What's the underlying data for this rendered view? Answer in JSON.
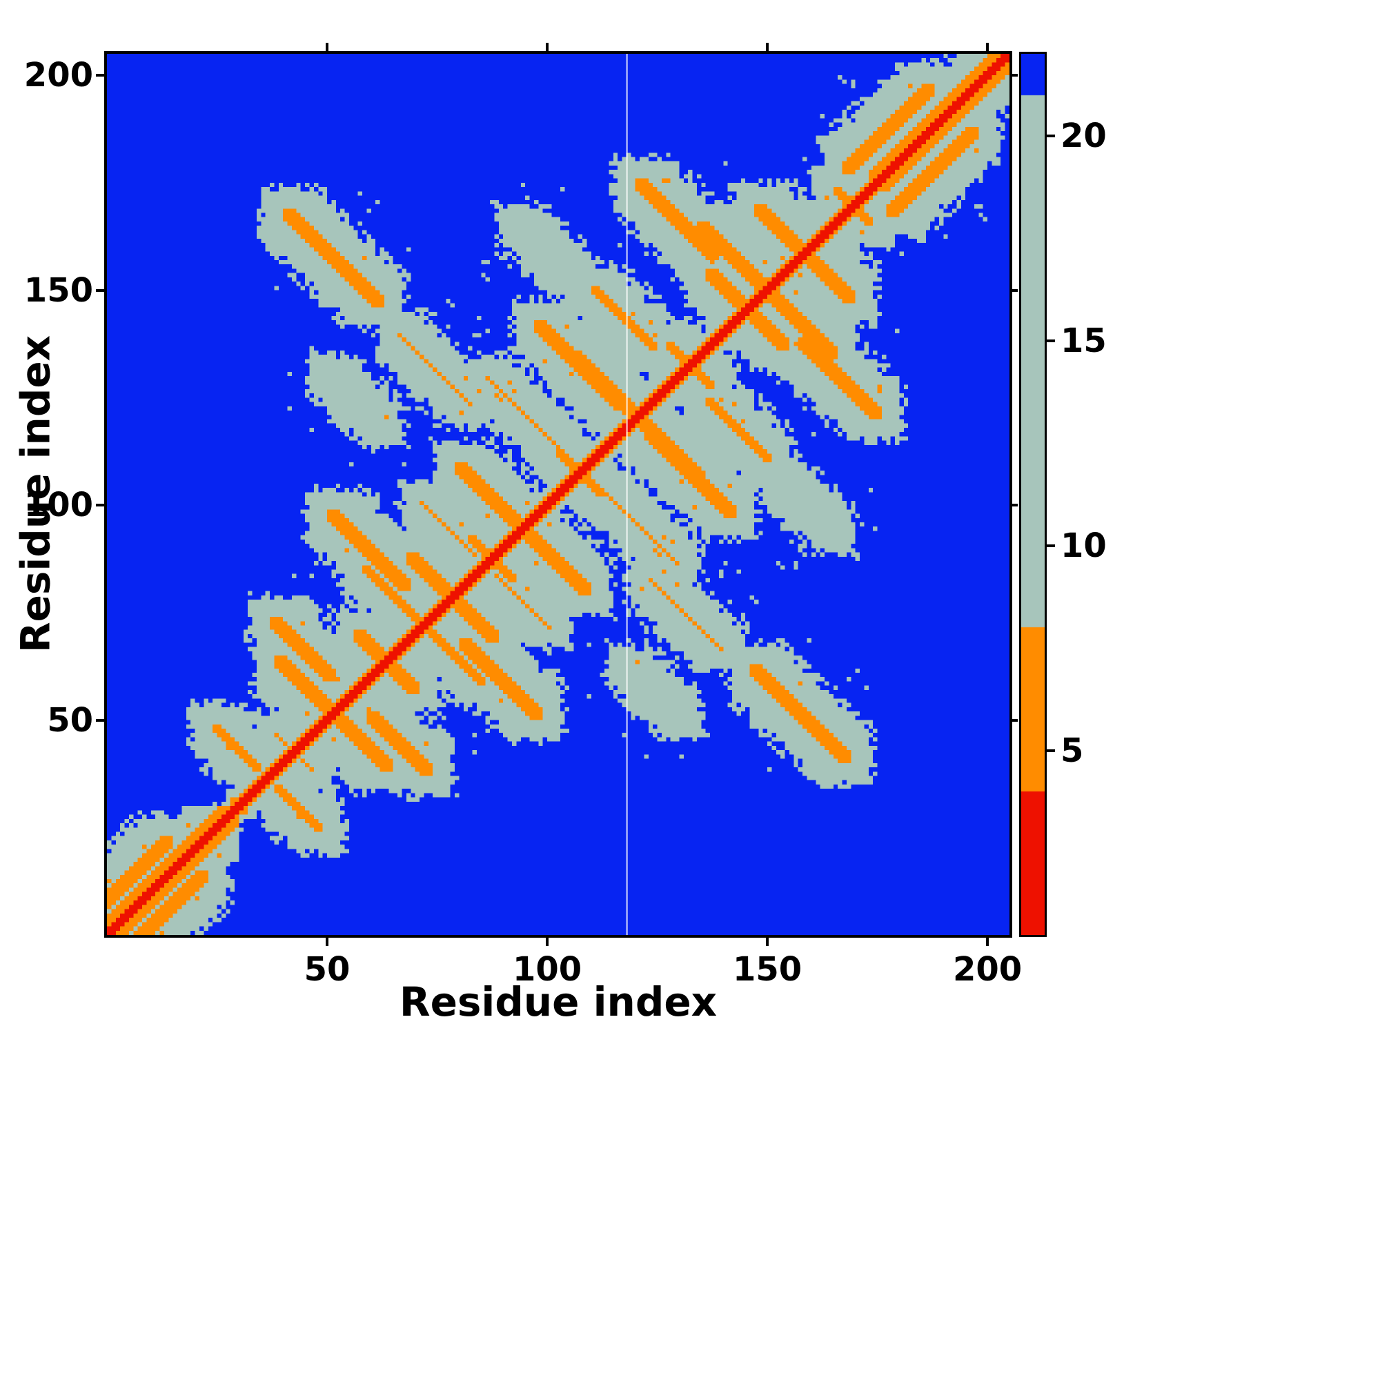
{
  "chart_data": {
    "type": "heatmap",
    "title": "",
    "xlabel": "Residue index",
    "ylabel": "Residue index",
    "x_range": [
      0,
      205
    ],
    "y_range": [
      0,
      205
    ],
    "x_ticks": [
      50,
      100,
      150,
      200
    ],
    "y_ticks": [
      50,
      100,
      150,
      200
    ],
    "legend": "colorbar-right",
    "colorbar": {
      "ticks": [
        5,
        10,
        15,
        20
      ],
      "vmin": 0.5,
      "vmax": 22,
      "colors": {
        "red": "#ee1100",
        "orange": "#ff8c00",
        "pale": "#a7c5bb",
        "blue": "#0724f2"
      },
      "thresholds": {
        "red_max": 4,
        "orange_max": 8,
        "pale_max": 21
      }
    },
    "matrix": {
      "n": 205,
      "base_value": 40,
      "chain_step": 3.9,
      "helix_slope": 1.6,
      "helix_offset": 1.5,
      "contact_slope": 2.6,
      "noise_seed": 11,
      "artifact_column": 118,
      "helices": [
        [
          1,
          30
        ],
        [
          174,
          205
        ]
      ],
      "contacts": [
        {
          "i": 52,
          "j": 52,
          "len": 12,
          "dir": -1,
          "dmin": 4.2
        },
        {
          "i": 64,
          "j": 64,
          "len": 6,
          "dir": -1,
          "dmin": 5.0
        },
        {
          "i": 79,
          "j": 79,
          "len": 9,
          "dir": -1,
          "dmin": 4.2
        },
        {
          "i": 95,
          "j": 95,
          "len": 6,
          "dir": -1,
          "dmin": 6.0
        },
        {
          "i": 108,
          "j": 108,
          "len": 5,
          "dir": -1,
          "dmin": 6.0
        },
        {
          "i": 121,
          "j": 121,
          "len": 14,
          "dir": -1,
          "dmin": 4.2
        },
        {
          "i": 133,
          "j": 133,
          "len": 5,
          "dir": -1,
          "dmin": 5.5
        },
        {
          "i": 146,
          "j": 146,
          "len": 8,
          "dir": -1,
          "dmin": 4.5
        },
        {
          "i": 159,
          "j": 159,
          "len": 10,
          "dir": -1,
          "dmin": 4.2
        },
        {
          "i": 170,
          "j": 170,
          "len": 4,
          "dir": -1,
          "dmin": 6.0
        },
        {
          "i": 43,
          "j": 43,
          "len": 4,
          "dir": -1,
          "dmin": 7.0
        },
        {
          "i": 88,
          "j": 88,
          "len": 5,
          "dir": -1,
          "dmin": 6.0
        },
        {
          "i": 52,
          "j": 158,
          "len": 10,
          "dir": -1,
          "dmin": 4.2
        },
        {
          "i": 60,
          "j": 90,
          "len": 8,
          "dir": -1,
          "dmin": 4.5
        },
        {
          "i": 45,
          "j": 67,
          "len": 6,
          "dir": -1,
          "dmin": 5.0
        },
        {
          "i": 88,
          "j": 102,
          "len": 7,
          "dir": -1,
          "dmin": 4.5
        },
        {
          "i": 108,
          "j": 133,
          "len": 9,
          "dir": -1,
          "dmin": 4.5
        },
        {
          "i": 130,
          "j": 167,
          "len": 8,
          "dir": -1,
          "dmin": 4.5
        },
        {
          "i": 143,
          "j": 158,
          "len": 7,
          "dir": -1,
          "dmin": 5.0
        },
        {
          "i": 75,
          "j": 132,
          "len": 8,
          "dir": -1,
          "dmin": 7.0
        },
        {
          "i": 95,
          "j": 122,
          "len": 8,
          "dir": -1,
          "dmin": 7.0
        },
        {
          "i": 118,
          "j": 144,
          "len": 7,
          "dir": -1,
          "dmin": 6.5
        },
        {
          "i": 57,
          "j": 125,
          "len": 6,
          "dir": -1,
          "dmin": 8.0
        },
        {
          "i": 65,
          "j": 80,
          "len": 6,
          "dir": -1,
          "dmin": 6.5
        },
        {
          "i": 30,
          "j": 44,
          "len": 5,
          "dir": -1,
          "dmin": 6.5
        },
        {
          "i": 100,
          "j": 160,
          "len": 6,
          "dir": -1,
          "dmin": 8.0
        },
        {
          "i": 78,
          "j": 95,
          "len": 6,
          "dir": -1,
          "dmin": 7.5
        },
        {
          "i": 4,
          "j": 12,
          "len": 10,
          "dir": 1,
          "dmin": 4.5
        },
        {
          "i": 178,
          "j": 188,
          "len": 9,
          "dir": 1,
          "dmin": 5.0
        }
      ]
    }
  }
}
